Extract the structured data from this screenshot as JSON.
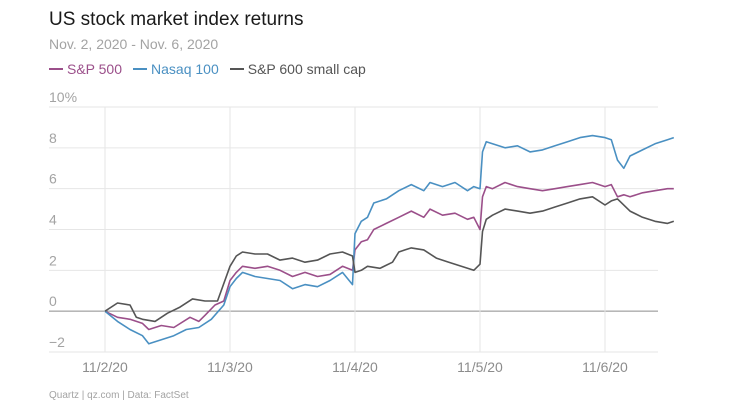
{
  "chart_data": {
    "type": "line",
    "title": "US stock market index returns",
    "subtitle": "Nov. 2, 2020 - Nov. 6, 2020",
    "source": "Quartz | qz.com | Data: FactSet",
    "xlabel": "",
    "ylabel": "",
    "ylim": [
      -2,
      10
    ],
    "yticks": [
      {
        "value": 10,
        "label": "10%"
      },
      {
        "value": 8,
        "label": "8"
      },
      {
        "value": 6,
        "label": "6"
      },
      {
        "value": 4,
        "label": "4"
      },
      {
        "value": 2,
        "label": "2"
      },
      {
        "value": 0,
        "label": "0"
      },
      {
        "value": -2,
        "label": "−2"
      }
    ],
    "xlim": [
      0,
      5.4
    ],
    "xticks": [
      {
        "value": 0,
        "label": "11/2/20"
      },
      {
        "value": 1,
        "label": "11/3/20"
      },
      {
        "value": 2,
        "label": "11/4/20"
      },
      {
        "value": 3,
        "label": "11/5/20"
      },
      {
        "value": 4,
        "label": "11/6/20"
      }
    ],
    "grid": true,
    "legend_position": "top-left",
    "series": [
      {
        "name": "S&P 500",
        "color": "#9b4f8a",
        "points": [
          [
            0,
            0
          ],
          [
            0.1,
            -0.3
          ],
          [
            0.2,
            -0.4
          ],
          [
            0.3,
            -0.6
          ],
          [
            0.35,
            -0.9
          ],
          [
            0.45,
            -0.7
          ],
          [
            0.55,
            -0.8
          ],
          [
            0.68,
            -0.3
          ],
          [
            0.75,
            -0.5
          ],
          [
            0.8,
            -0.2
          ],
          [
            0.88,
            0.3
          ],
          [
            0.95,
            0.5
          ],
          [
            1.0,
            1.5
          ],
          [
            1.05,
            1.9
          ],
          [
            1.1,
            2.2
          ],
          [
            1.2,
            2.1
          ],
          [
            1.3,
            2.2
          ],
          [
            1.4,
            2.0
          ],
          [
            1.5,
            1.7
          ],
          [
            1.6,
            1.9
          ],
          [
            1.7,
            1.7
          ],
          [
            1.8,
            1.8
          ],
          [
            1.9,
            2.2
          ],
          [
            1.98,
            2.0
          ],
          [
            2.0,
            3.0
          ],
          [
            2.05,
            3.4
          ],
          [
            2.1,
            3.5
          ],
          [
            2.15,
            4.0
          ],
          [
            2.25,
            4.3
          ],
          [
            2.35,
            4.6
          ],
          [
            2.45,
            4.9
          ],
          [
            2.55,
            4.6
          ],
          [
            2.6,
            5.0
          ],
          [
            2.7,
            4.7
          ],
          [
            2.8,
            4.8
          ],
          [
            2.9,
            4.5
          ],
          [
            2.95,
            4.6
          ],
          [
            3.0,
            4.0
          ],
          [
            3.02,
            5.6
          ],
          [
            3.05,
            6.1
          ],
          [
            3.1,
            6.0
          ],
          [
            3.2,
            6.3
          ],
          [
            3.3,
            6.1
          ],
          [
            3.4,
            6.0
          ],
          [
            3.5,
            5.9
          ],
          [
            3.6,
            6.0
          ],
          [
            3.7,
            6.1
          ],
          [
            3.8,
            6.2
          ],
          [
            3.9,
            6.3
          ],
          [
            4.0,
            6.1
          ],
          [
            4.05,
            6.2
          ],
          [
            4.1,
            5.6
          ],
          [
            4.15,
            5.7
          ],
          [
            4.2,
            5.6
          ],
          [
            4.3,
            5.8
          ],
          [
            4.4,
            5.9
          ],
          [
            4.5,
            6.0
          ],
          [
            4.55,
            6.0
          ]
        ]
      },
      {
        "name": "Nasaq 100",
        "color": "#4a90c2",
        "points": [
          [
            0,
            0
          ],
          [
            0.1,
            -0.5
          ],
          [
            0.2,
            -0.9
          ],
          [
            0.3,
            -1.2
          ],
          [
            0.35,
            -1.6
          ],
          [
            0.45,
            -1.4
          ],
          [
            0.55,
            -1.2
          ],
          [
            0.65,
            -0.9
          ],
          [
            0.75,
            -0.8
          ],
          [
            0.85,
            -0.4
          ],
          [
            0.95,
            0.3
          ],
          [
            1.0,
            1.2
          ],
          [
            1.05,
            1.6
          ],
          [
            1.1,
            1.9
          ],
          [
            1.2,
            1.7
          ],
          [
            1.3,
            1.6
          ],
          [
            1.4,
            1.5
          ],
          [
            1.5,
            1.1
          ],
          [
            1.6,
            1.3
          ],
          [
            1.7,
            1.2
          ],
          [
            1.8,
            1.5
          ],
          [
            1.9,
            1.9
          ],
          [
            1.98,
            1.3
          ],
          [
            2.0,
            3.8
          ],
          [
            2.05,
            4.4
          ],
          [
            2.1,
            4.6
          ],
          [
            2.15,
            5.3
          ],
          [
            2.25,
            5.5
          ],
          [
            2.35,
            5.9
          ],
          [
            2.45,
            6.2
          ],
          [
            2.55,
            5.9
          ],
          [
            2.6,
            6.3
          ],
          [
            2.7,
            6.1
          ],
          [
            2.8,
            6.3
          ],
          [
            2.9,
            5.9
          ],
          [
            2.95,
            6.1
          ],
          [
            3.0,
            6.0
          ],
          [
            3.02,
            7.8
          ],
          [
            3.05,
            8.3
          ],
          [
            3.1,
            8.2
          ],
          [
            3.2,
            8.0
          ],
          [
            3.3,
            8.1
          ],
          [
            3.4,
            7.8
          ],
          [
            3.5,
            7.9
          ],
          [
            3.6,
            8.1
          ],
          [
            3.7,
            8.3
          ],
          [
            3.8,
            8.5
          ],
          [
            3.9,
            8.6
          ],
          [
            4.0,
            8.5
          ],
          [
            4.05,
            8.4
          ],
          [
            4.1,
            7.4
          ],
          [
            4.15,
            7.0
          ],
          [
            4.2,
            7.6
          ],
          [
            4.3,
            7.9
          ],
          [
            4.4,
            8.2
          ],
          [
            4.5,
            8.4
          ],
          [
            4.55,
            8.5
          ]
        ]
      },
      {
        "name": "S&P 600 small cap",
        "color": "#555555",
        "points": [
          [
            0,
            0
          ],
          [
            0.1,
            0.4
          ],
          [
            0.2,
            0.3
          ],
          [
            0.25,
            -0.3
          ],
          [
            0.3,
            -0.4
          ],
          [
            0.4,
            -0.5
          ],
          [
            0.5,
            -0.1
          ],
          [
            0.6,
            0.2
          ],
          [
            0.7,
            0.6
          ],
          [
            0.8,
            0.5
          ],
          [
            0.9,
            0.5
          ],
          [
            1.0,
            2.2
          ],
          [
            1.05,
            2.7
          ],
          [
            1.1,
            2.9
          ],
          [
            1.2,
            2.8
          ],
          [
            1.3,
            2.8
          ],
          [
            1.4,
            2.5
          ],
          [
            1.5,
            2.6
          ],
          [
            1.6,
            2.4
          ],
          [
            1.7,
            2.5
          ],
          [
            1.8,
            2.8
          ],
          [
            1.9,
            2.9
          ],
          [
            1.98,
            2.7
          ],
          [
            2.0,
            1.9
          ],
          [
            2.05,
            2.0
          ],
          [
            2.1,
            2.2
          ],
          [
            2.2,
            2.1
          ],
          [
            2.3,
            2.4
          ],
          [
            2.35,
            2.9
          ],
          [
            2.4,
            3.0
          ],
          [
            2.45,
            3.1
          ],
          [
            2.55,
            3.0
          ],
          [
            2.65,
            2.6
          ],
          [
            2.75,
            2.4
          ],
          [
            2.85,
            2.2
          ],
          [
            2.95,
            2.0
          ],
          [
            3.0,
            2.3
          ],
          [
            3.02,
            3.9
          ],
          [
            3.05,
            4.5
          ],
          [
            3.1,
            4.7
          ],
          [
            3.2,
            5.0
          ],
          [
            3.3,
            4.9
          ],
          [
            3.4,
            4.8
          ],
          [
            3.5,
            4.9
          ],
          [
            3.6,
            5.1
          ],
          [
            3.7,
            5.3
          ],
          [
            3.8,
            5.5
          ],
          [
            3.9,
            5.6
          ],
          [
            4.0,
            5.2
          ],
          [
            4.05,
            5.4
          ],
          [
            4.1,
            5.5
          ],
          [
            4.2,
            4.9
          ],
          [
            4.3,
            4.6
          ],
          [
            4.4,
            4.4
          ],
          [
            4.5,
            4.3
          ],
          [
            4.55,
            4.4
          ]
        ]
      }
    ]
  }
}
